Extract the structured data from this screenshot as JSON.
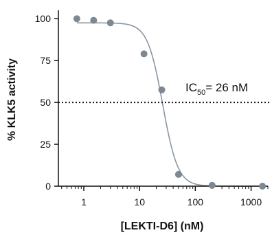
{
  "chart_data": {
    "type": "scatter",
    "x_scale": "log",
    "xlabel": "[LEKTI-D6] (nM)",
    "ylabel": "% KLK5 activity",
    "xlim": [
      0.35,
      2000
    ],
    "ylim": [
      0,
      105
    ],
    "x_ticks": [
      1,
      10,
      100,
      1000
    ],
    "x_tick_labels": [
      "1",
      "10",
      "100",
      "1000"
    ],
    "y_ticks": [
      0,
      25,
      50,
      75,
      100
    ],
    "y_tick_labels": [
      "0",
      "25",
      "50",
      "75",
      "100"
    ],
    "reference_line": {
      "y": 50,
      "style": "dotted"
    },
    "annotation": {
      "prefix": "IC",
      "subscript": "50",
      "suffix": "= 26 nM"
    },
    "point_color": "#7d8893",
    "curve_color": "#8a96a2",
    "series": [
      {
        "type": "scatter",
        "x": [
          0.75,
          1.5,
          3,
          12,
          25,
          50,
          200,
          1600
        ],
        "y": [
          100,
          99,
          97.5,
          79,
          57.5,
          7,
          0.5,
          0
        ]
      }
    ],
    "fit_curve": {
      "type": "sigmoid",
      "top": 97.5,
      "bottom": 0,
      "ic50": 26,
      "hill": 3.2
    }
  }
}
